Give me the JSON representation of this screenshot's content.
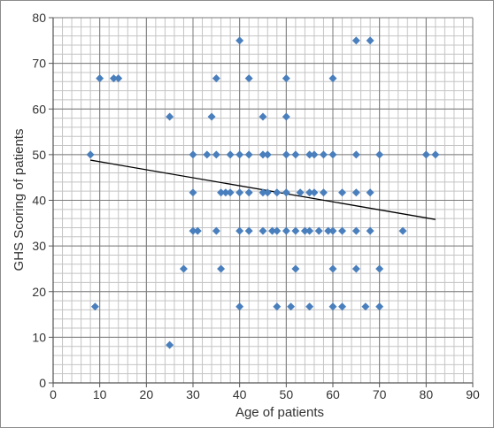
{
  "chart_data": {
    "type": "scatter",
    "title": "",
    "xlabel": "Age of patients",
    "ylabel": "GHS Scoring of patients",
    "xlim": [
      0,
      90
    ],
    "ylim": [
      0,
      80
    ],
    "x_ticks": [
      0,
      10,
      20,
      30,
      40,
      50,
      60,
      70,
      80,
      90
    ],
    "y_ticks": [
      0,
      10,
      20,
      30,
      40,
      50,
      60,
      70,
      80
    ],
    "x_tick_labels": [
      "0",
      "10",
      "20",
      "30",
      "40",
      "50",
      "60",
      "70",
      "80",
      "90"
    ],
    "y_tick_labels": [
      "0",
      "10",
      "20",
      "30",
      "40",
      "50",
      "60",
      "70",
      "80"
    ],
    "grid": true,
    "grid_minor_step": {
      "x": 2,
      "y": 2
    },
    "marker_color": "#4a7fbd",
    "trendline_color": "#000000",
    "points": [
      {
        "x": 8,
        "y": 50
      },
      {
        "x": 9,
        "y": 16.7
      },
      {
        "x": 10,
        "y": 66.7
      },
      {
        "x": 13,
        "y": 66.7
      },
      {
        "x": 14,
        "y": 66.7
      },
      {
        "x": 25,
        "y": 58.3
      },
      {
        "x": 25,
        "y": 8.3
      },
      {
        "x": 28,
        "y": 25
      },
      {
        "x": 30,
        "y": 50
      },
      {
        "x": 30,
        "y": 41.7
      },
      {
        "x": 30,
        "y": 33.3
      },
      {
        "x": 31,
        "y": 33.3
      },
      {
        "x": 33,
        "y": 50
      },
      {
        "x": 34,
        "y": 58.3
      },
      {
        "x": 35,
        "y": 66.7
      },
      {
        "x": 35,
        "y": 50
      },
      {
        "x": 35,
        "y": 33.3
      },
      {
        "x": 36,
        "y": 41.7
      },
      {
        "x": 36,
        "y": 25
      },
      {
        "x": 37,
        "y": 41.7
      },
      {
        "x": 38,
        "y": 50
      },
      {
        "x": 38,
        "y": 41.7
      },
      {
        "x": 40,
        "y": 75
      },
      {
        "x": 40,
        "y": 50
      },
      {
        "x": 40,
        "y": 41.7
      },
      {
        "x": 40,
        "y": 33.3
      },
      {
        "x": 40,
        "y": 16.7
      },
      {
        "x": 42,
        "y": 66.7
      },
      {
        "x": 42,
        "y": 50
      },
      {
        "x": 42,
        "y": 41.7
      },
      {
        "x": 42,
        "y": 33.3
      },
      {
        "x": 45,
        "y": 58.3
      },
      {
        "x": 45,
        "y": 50
      },
      {
        "x": 45,
        "y": 41.7
      },
      {
        "x": 45,
        "y": 33.3
      },
      {
        "x": 46,
        "y": 50
      },
      {
        "x": 46,
        "y": 41.7
      },
      {
        "x": 47,
        "y": 33.3
      },
      {
        "x": 48,
        "y": 41.7
      },
      {
        "x": 48,
        "y": 33.3
      },
      {
        "x": 48,
        "y": 16.7
      },
      {
        "x": 50,
        "y": 66.7
      },
      {
        "x": 50,
        "y": 58.3
      },
      {
        "x": 50,
        "y": 50
      },
      {
        "x": 50,
        "y": 41.7
      },
      {
        "x": 50,
        "y": 33.3
      },
      {
        "x": 51,
        "y": 16.7
      },
      {
        "x": 52,
        "y": 50
      },
      {
        "x": 52,
        "y": 33.3
      },
      {
        "x": 52,
        "y": 25
      },
      {
        "x": 53,
        "y": 41.7
      },
      {
        "x": 54,
        "y": 33.3
      },
      {
        "x": 55,
        "y": 50
      },
      {
        "x": 55,
        "y": 41.7
      },
      {
        "x": 55,
        "y": 33.3
      },
      {
        "x": 55,
        "y": 16.7
      },
      {
        "x": 56,
        "y": 50
      },
      {
        "x": 56,
        "y": 41.7
      },
      {
        "x": 57,
        "y": 33.3
      },
      {
        "x": 58,
        "y": 50
      },
      {
        "x": 58,
        "y": 41.7
      },
      {
        "x": 59,
        "y": 33.3
      },
      {
        "x": 60,
        "y": 66.7
      },
      {
        "x": 60,
        "y": 50
      },
      {
        "x": 60,
        "y": 33.3
      },
      {
        "x": 60,
        "y": 25
      },
      {
        "x": 60,
        "y": 16.7
      },
      {
        "x": 62,
        "y": 41.7
      },
      {
        "x": 62,
        "y": 33.3
      },
      {
        "x": 62,
        "y": 16.7
      },
      {
        "x": 65,
        "y": 75
      },
      {
        "x": 65,
        "y": 50
      },
      {
        "x": 65,
        "y": 41.7
      },
      {
        "x": 65,
        "y": 33.3
      },
      {
        "x": 65,
        "y": 25
      },
      {
        "x": 67,
        "y": 16.7
      },
      {
        "x": 68,
        "y": 75
      },
      {
        "x": 68,
        "y": 41.7
      },
      {
        "x": 68,
        "y": 33.3
      },
      {
        "x": 70,
        "y": 50
      },
      {
        "x": 70,
        "y": 25
      },
      {
        "x": 70,
        "y": 16.7
      },
      {
        "x": 75,
        "y": 33.3
      },
      {
        "x": 80,
        "y": 50
      },
      {
        "x": 82,
        "y": 50
      }
    ],
    "trendline": {
      "x": [
        8,
        82
      ],
      "y": [
        48.8,
        35.8
      ]
    }
  }
}
